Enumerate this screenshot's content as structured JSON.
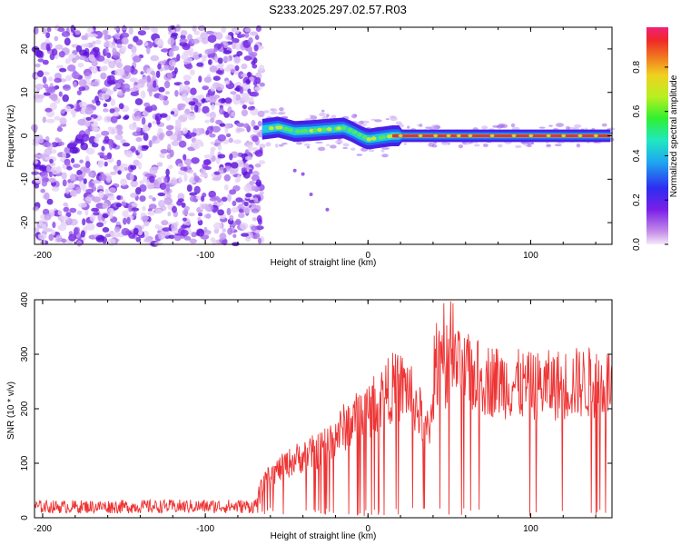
{
  "chart_data": [
    {
      "type": "heatmap",
      "title": "S233.2025.297.02.57.R03",
      "xlabel": "Height of straight line (km)",
      "ylabel": "Frequency (Hz)",
      "xlim": [
        -205,
        150
      ],
      "ylim": [
        -25,
        25
      ],
      "xticks": [
        -200,
        -100,
        0,
        100
      ],
      "yticks": [
        -20,
        -10,
        0,
        10,
        20
      ],
      "noise_region_end_km": -65,
      "signal_track": [
        {
          "x": -65,
          "y": 1.5
        },
        {
          "x": -55,
          "y": 2.0
        },
        {
          "x": -45,
          "y": 1.0
        },
        {
          "x": -35,
          "y": 1.2
        },
        {
          "x": -25,
          "y": 1.5
        },
        {
          "x": -15,
          "y": 1.8
        },
        {
          "x": -10,
          "y": 1.0
        },
        {
          "x": -5,
          "y": 0.0
        },
        {
          "x": 0,
          "y": -0.8
        },
        {
          "x": 5,
          "y": -0.5
        },
        {
          "x": 15,
          "y": 0.0
        },
        {
          "x": 30,
          "y": 0.0
        },
        {
          "x": 60,
          "y": 0.0
        },
        {
          "x": 100,
          "y": 0.0
        },
        {
          "x": 150,
          "y": 0.0
        }
      ],
      "colorbar": {
        "label": "Normalized spectral amplitude",
        "min": 0.0,
        "max": 0.98,
        "ticks": [
          "0.0",
          "0.2",
          "0.4",
          "0.6",
          "0.8"
        ],
        "tick_values": [
          0.0,
          0.2,
          0.4,
          0.6,
          0.8
        ]
      }
    },
    {
      "type": "line",
      "xlabel": "Height of straight line (km)",
      "ylabel": "SNR (10 * v/v)",
      "xlim": [
        -205,
        150
      ],
      "ylim": [
        0,
        400
      ],
      "xticks": [
        -200,
        -100,
        0,
        100
      ],
      "yticks": [
        0,
        100,
        200,
        300,
        400
      ],
      "series": [
        {
          "name": "SNR",
          "color": "#ee3333",
          "envelope": [
            {
              "x": -205,
              "y": 20
            },
            {
              "x": -70,
              "y": 22
            },
            {
              "x": -62,
              "y": 90
            },
            {
              "x": -45,
              "y": 130
            },
            {
              "x": -30,
              "y": 150
            },
            {
              "x": -15,
              "y": 200
            },
            {
              "x": 0,
              "y": 240
            },
            {
              "x": 15,
              "y": 290
            },
            {
              "x": 25,
              "y": 290
            },
            {
              "x": 32,
              "y": 230
            },
            {
              "x": 37,
              "y": 190
            },
            {
              "x": 42,
              "y": 330
            },
            {
              "x": 55,
              "y": 330
            },
            {
              "x": 70,
              "y": 310
            },
            {
              "x": 100,
              "y": 290
            },
            {
              "x": 130,
              "y": 300
            },
            {
              "x": 150,
              "y": 300
            }
          ]
        }
      ]
    }
  ]
}
